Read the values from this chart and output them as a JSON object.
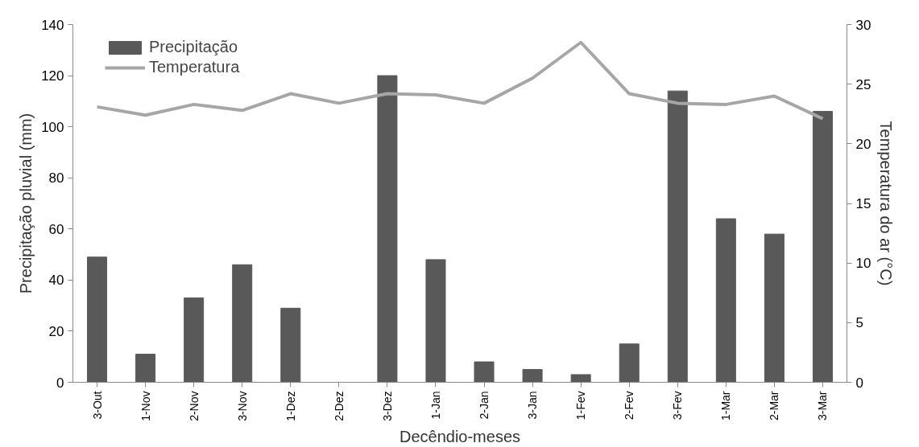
{
  "chart_data": {
    "type": "bar",
    "xlabel": "Decêndio-meses",
    "ylabel": "Precipitação pluvial (mm)",
    "y2label": "Temperatura do ar (°C)",
    "categories": [
      "3-Out",
      "1-Nov",
      "2-Nov",
      "3-Nov",
      "1-Dez",
      "2-Dez",
      "3-Dez",
      "1-Jan",
      "2-Jan",
      "3-Jan",
      "1-Fev",
      "2-Fev",
      "3-Fev",
      "1-Mar",
      "2-Mar",
      "3-Mar"
    ],
    "series": [
      {
        "name": "Precipitação",
        "color": "#595959",
        "values": [
          49,
          11,
          33,
          46,
          29,
          0,
          120,
          48,
          8,
          5,
          3,
          15,
          114,
          64,
          58,
          106
        ]
      },
      {
        "name": "Temperatura",
        "type": "line",
        "axis": "y2",
        "color": "#a6a6a6",
        "values": [
          23.1,
          22.4,
          23.3,
          22.8,
          24.2,
          23.4,
          24.2,
          24.1,
          23.4,
          25.5,
          28.5,
          24.2,
          23.4,
          23.3,
          24.0,
          22.1
        ]
      }
    ],
    "ylim": [
      0,
      140
    ],
    "yticks": [
      0,
      20,
      40,
      60,
      80,
      100,
      120,
      140
    ],
    "y2lim": [
      0,
      30
    ],
    "y2ticks": [
      0,
      5,
      10,
      15,
      20,
      25,
      30
    ],
    "grid": false,
    "legend": "top left",
    "line_style": "solid",
    "marker": "none"
  }
}
